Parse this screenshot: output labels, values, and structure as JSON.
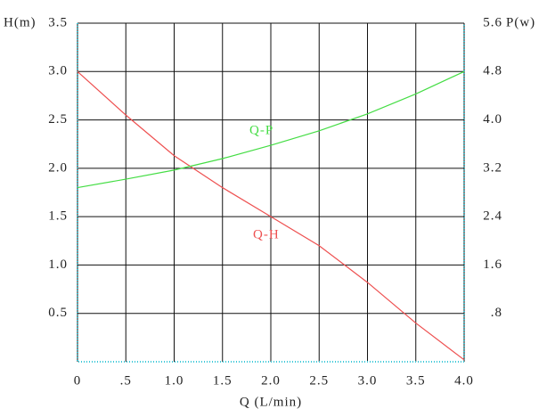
{
  "chart_data": {
    "type": "line",
    "x": [
      0,
      0.5,
      1,
      1.5,
      2,
      2.5,
      3,
      3.5,
      4
    ],
    "xlim": [
      0,
      4
    ],
    "xticks": [
      0,
      {
        "value": 0.5,
        "label": ".5"
      },
      {
        "value": 1,
        "label": "1.0"
      },
      1.5,
      {
        "value": 2,
        "label": "2.0"
      },
      2.5,
      {
        "value": 3,
        "label": "3.0"
      },
      3.5,
      {
        "value": 4,
        "label": "4.0"
      }
    ],
    "ylim": [
      0,
      3.5
    ],
    "yticks": [
      0.5,
      {
        "value": 1,
        "label": "1.0"
      },
      1.5,
      {
        "value": 2,
        "label": "2.0"
      },
      2.5,
      {
        "value": 3,
        "label": "3.0"
      },
      3.5
    ],
    "y2lim": [
      0,
      5.6
    ],
    "y2ticks": [
      {
        "value": 0.8,
        "label": ".8"
      },
      1.6,
      2.4,
      3.2,
      {
        "value": 4,
        "label": "4.0"
      },
      4.8,
      5.6
    ],
    "xlabel": "Q (L/min)",
    "ylabel": "H(m)",
    "y2label": "P(w)",
    "grid": true,
    "series": [
      {
        "name": "Q-H",
        "color": "#ee5050",
        "values": [
          3.0,
          2.55,
          2.13,
          1.8,
          1.5,
          1.2,
          0.82,
          0.4,
          0.02
        ]
      },
      {
        "name": "Q-P",
        "color": "#44dd44",
        "axis": "y2",
        "values": [
          2.88,
          3.02,
          3.17,
          3.36,
          3.58,
          3.82,
          4.1,
          4.43,
          4.8
        ]
      }
    ]
  }
}
